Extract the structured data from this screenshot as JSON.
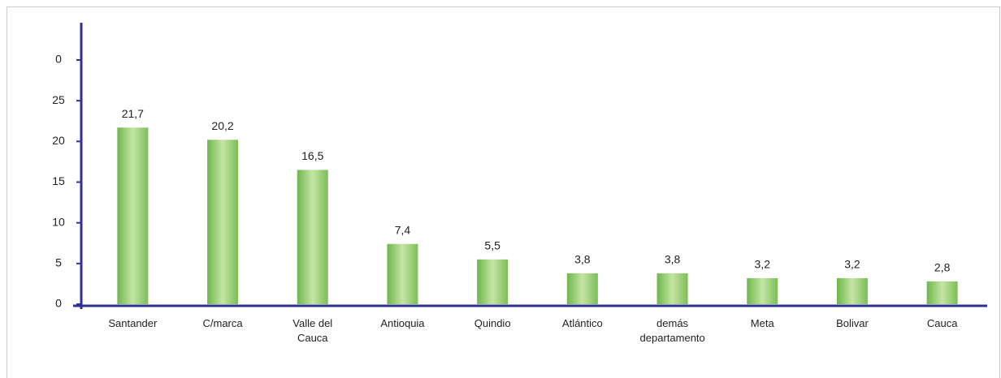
{
  "chart_data": {
    "type": "bar",
    "categories": [
      "Santander",
      "C/marca",
      "Valle del Cauca",
      "Antioquia",
      "Quindio",
      "Atlántico",
      "demás departamento",
      "Meta",
      "Bolivar",
      "Cauca"
    ],
    "values": [
      21.7,
      20.2,
      16.5,
      7.4,
      5.5,
      3.8,
      3.8,
      3.2,
      3.2,
      2.8
    ],
    "value_labels": [
      "21,7",
      "20,2",
      "16,5",
      "7,4",
      "5,5",
      "3,8",
      "3,8",
      "3,2",
      "3,2",
      "2,8"
    ],
    "color": "#8dc86a",
    "ylim": [
      0,
      30
    ],
    "yticks": [
      0,
      5,
      10,
      15,
      20,
      25,
      {
        "value": 30,
        "label": "0"
      }
    ],
    "grid": false
  }
}
